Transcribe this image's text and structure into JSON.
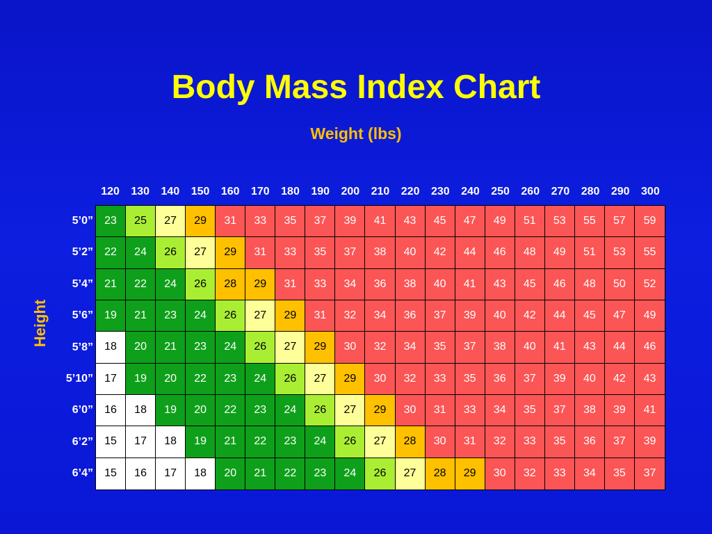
{
  "chart_data": {
    "type": "heatmap",
    "title": "Body Mass Index Chart",
    "xlabel": "Weight (lbs)",
    "ylabel": "Height",
    "x": [
      "120",
      "130",
      "140",
      "150",
      "160",
      "170",
      "180",
      "190",
      "200",
      "210",
      "220",
      "230",
      "240",
      "250",
      "260",
      "270",
      "280",
      "290",
      "300"
    ],
    "y": [
      "5’0”",
      "5’2”",
      "5’4”",
      "5’6”",
      "5’8”",
      "5’10”",
      "6’0”",
      "6’2”",
      "6’4”"
    ],
    "values": [
      [
        23,
        25,
        27,
        29,
        31,
        33,
        35,
        37,
        39,
        41,
        43,
        45,
        47,
        49,
        51,
        53,
        55,
        57,
        59
      ],
      [
        22,
        24,
        26,
        27,
        29,
        31,
        33,
        35,
        37,
        38,
        40,
        42,
        44,
        46,
        48,
        49,
        51,
        53,
        55
      ],
      [
        21,
        22,
        24,
        26,
        28,
        29,
        31,
        33,
        34,
        36,
        38,
        40,
        41,
        43,
        45,
        46,
        48,
        50,
        52
      ],
      [
        19,
        21,
        23,
        24,
        26,
        27,
        29,
        31,
        32,
        34,
        36,
        37,
        39,
        40,
        42,
        44,
        45,
        47,
        49
      ],
      [
        18,
        20,
        21,
        23,
        24,
        26,
        27,
        29,
        30,
        32,
        34,
        35,
        37,
        38,
        40,
        41,
        43,
        44,
        46
      ],
      [
        17,
        19,
        20,
        22,
        23,
        24,
        26,
        27,
        29,
        30,
        32,
        33,
        35,
        36,
        37,
        39,
        40,
        42,
        43
      ],
      [
        16,
        18,
        19,
        20,
        22,
        23,
        24,
        26,
        27,
        29,
        30,
        31,
        33,
        34,
        35,
        37,
        38,
        39,
        41
      ],
      [
        15,
        17,
        18,
        19,
        21,
        22,
        23,
        24,
        26,
        27,
        28,
        30,
        31,
        32,
        33,
        35,
        36,
        37,
        39
      ],
      [
        15,
        16,
        17,
        18,
        20,
        21,
        22,
        23,
        24,
        26,
        27,
        28,
        29,
        30,
        32,
        33,
        34,
        35,
        37
      ]
    ],
    "color_bands": [
      {
        "min": 0,
        "max": 18,
        "color": "#ffffff",
        "text": "#000000"
      },
      {
        "min": 19,
        "max": 24,
        "color": "#0ea01a",
        "text": "#ffffff"
      },
      {
        "min": 25,
        "max": 26,
        "color": "#aaee33",
        "text": "#000000"
      },
      {
        "min": 27,
        "max": 27,
        "color": "#ffff99",
        "text": "#000000"
      },
      {
        "min": 28,
        "max": 29,
        "color": "#ffc000",
        "text": "#000000"
      },
      {
        "min": 30,
        "max": 99,
        "color": "#fc5555",
        "text": "#ffffff"
      }
    ]
  }
}
